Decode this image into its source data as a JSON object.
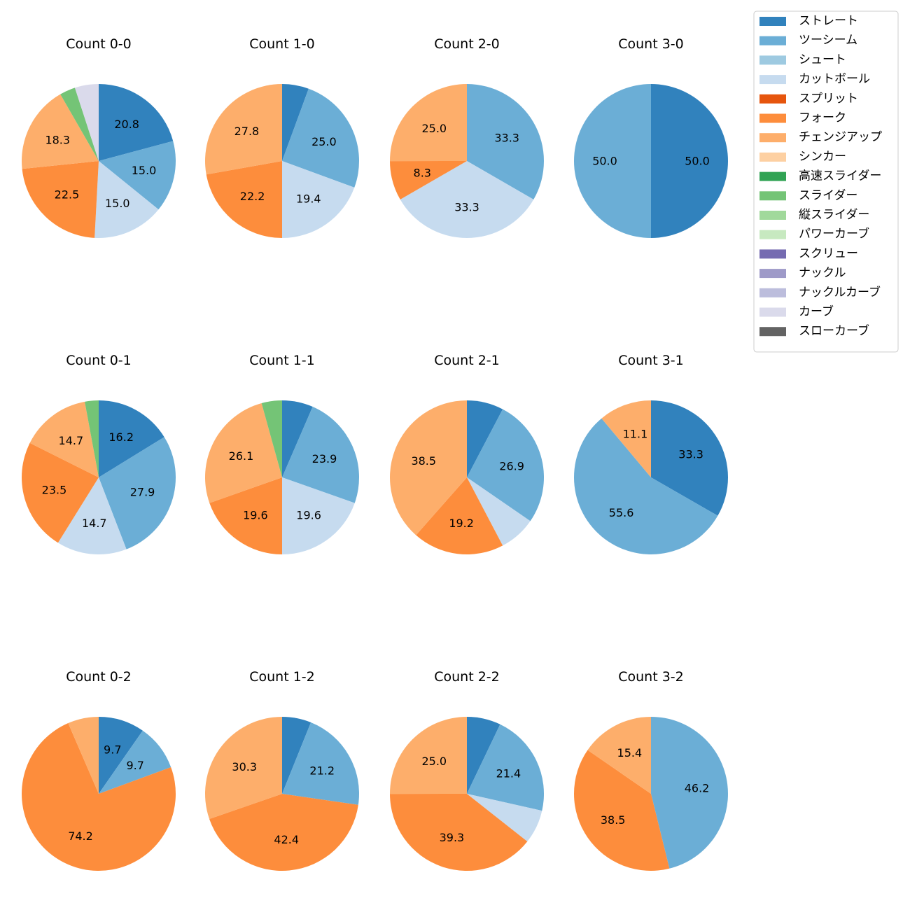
{
  "colors": {
    "ストレート": "#3182bd",
    "ツーシーム": "#6baed6",
    "シュート": "#9ecae1",
    "カットボール": "#c6dbef",
    "スプリット": "#e6550d",
    "フォーク": "#fd8d3c",
    "チェンジアップ": "#fdae6b",
    "シンカー": "#fdd0a2",
    "高速スライダー": "#31a354",
    "スライダー": "#74c476",
    "縦スライダー": "#a1d99b",
    "パワーカーブ": "#c7e9c0",
    "スクリュー": "#756bb1",
    "ナックル": "#9e9ac8",
    "ナックルカーブ": "#bcbddc",
    "カーブ": "#dadaeb",
    "スローカーブ": "#636363"
  },
  "chart_data": {
    "type": "pie",
    "legend_position": "top-right",
    "legend": [
      "ストレート",
      "ツーシーム",
      "シュート",
      "カットボール",
      "スプリット",
      "フォーク",
      "チェンジアップ",
      "シンカー",
      "高速スライダー",
      "スライダー",
      "縦スライダー",
      "パワーカーブ",
      "スクリュー",
      "ナックル",
      "ナックルカーブ",
      "カーブ",
      "スローカーブ"
    ],
    "pies": [
      {
        "title": "Count 0-0",
        "slices": [
          {
            "name": "ストレート",
            "value": 20.8,
            "label": "20.8"
          },
          {
            "name": "ツーシーム",
            "value": 15.0,
            "label": "15.0"
          },
          {
            "name": "カットボール",
            "value": 15.0,
            "label": "15.0"
          },
          {
            "name": "フォーク",
            "value": 22.5,
            "label": "22.5"
          },
          {
            "name": "チェンジアップ",
            "value": 18.3,
            "label": "18.3"
          },
          {
            "name": "スライダー",
            "value": 3.3,
            "label": ""
          },
          {
            "name": "カーブ",
            "value": 5.0,
            "label": ""
          }
        ]
      },
      {
        "title": "Count 1-0",
        "slices": [
          {
            "name": "ストレート",
            "value": 5.6,
            "label": ""
          },
          {
            "name": "ツーシーム",
            "value": 25.0,
            "label": "25.0"
          },
          {
            "name": "カットボール",
            "value": 19.4,
            "label": "19.4"
          },
          {
            "name": "フォーク",
            "value": 22.2,
            "label": "22.2"
          },
          {
            "name": "チェンジアップ",
            "value": 27.8,
            "label": "27.8"
          }
        ]
      },
      {
        "title": "Count 2-0",
        "slices": [
          {
            "name": "ツーシーム",
            "value": 33.3,
            "label": "33.3"
          },
          {
            "name": "カットボール",
            "value": 33.3,
            "label": "33.3"
          },
          {
            "name": "フォーク",
            "value": 8.3,
            "label": "8.3"
          },
          {
            "name": "チェンジアップ",
            "value": 25.0,
            "label": "25.0"
          }
        ]
      },
      {
        "title": "Count 3-0",
        "slices": [
          {
            "name": "ストレート",
            "value": 50.0,
            "label": "50.0"
          },
          {
            "name": "ツーシーム",
            "value": 50.0,
            "label": "50.0"
          }
        ]
      },
      {
        "title": "Count 0-1",
        "slices": [
          {
            "name": "ストレート",
            "value": 16.2,
            "label": "16.2"
          },
          {
            "name": "ツーシーム",
            "value": 27.9,
            "label": "27.9"
          },
          {
            "name": "カットボール",
            "value": 14.7,
            "label": "14.7"
          },
          {
            "name": "フォーク",
            "value": 23.5,
            "label": "23.5"
          },
          {
            "name": "チェンジアップ",
            "value": 14.7,
            "label": "14.7"
          },
          {
            "name": "スライダー",
            "value": 2.9,
            "label": ""
          }
        ]
      },
      {
        "title": "Count 1-1",
        "slices": [
          {
            "name": "ストレート",
            "value": 6.5,
            "label": ""
          },
          {
            "name": "ツーシーム",
            "value": 23.9,
            "label": "23.9"
          },
          {
            "name": "カットボール",
            "value": 19.6,
            "label": "19.6"
          },
          {
            "name": "フォーク",
            "value": 19.6,
            "label": "19.6"
          },
          {
            "name": "チェンジアップ",
            "value": 26.1,
            "label": "26.1"
          },
          {
            "name": "スライダー",
            "value": 4.3,
            "label": ""
          }
        ]
      },
      {
        "title": "Count 2-1",
        "slices": [
          {
            "name": "ストレート",
            "value": 7.7,
            "label": ""
          },
          {
            "name": "ツーシーム",
            "value": 26.9,
            "label": "26.9"
          },
          {
            "name": "カットボール",
            "value": 7.7,
            "label": ""
          },
          {
            "name": "フォーク",
            "value": 19.2,
            "label": "19.2"
          },
          {
            "name": "チェンジアップ",
            "value": 38.5,
            "label": "38.5"
          }
        ]
      },
      {
        "title": "Count 3-1",
        "slices": [
          {
            "name": "ストレート",
            "value": 33.3,
            "label": "33.3"
          },
          {
            "name": "ツーシーム",
            "value": 55.6,
            "label": "55.6"
          },
          {
            "name": "チェンジアップ",
            "value": 11.1,
            "label": "11.1"
          }
        ]
      },
      {
        "title": "Count 0-2",
        "slices": [
          {
            "name": "ストレート",
            "value": 9.7,
            "label": "9.7"
          },
          {
            "name": "ツーシーム",
            "value": 9.7,
            "label": "9.7"
          },
          {
            "name": "フォーク",
            "value": 74.2,
            "label": "74.2"
          },
          {
            "name": "チェンジアップ",
            "value": 6.5,
            "label": ""
          }
        ]
      },
      {
        "title": "Count 1-2",
        "slices": [
          {
            "name": "ストレート",
            "value": 6.1,
            "label": ""
          },
          {
            "name": "ツーシーム",
            "value": 21.2,
            "label": "21.2"
          },
          {
            "name": "フォーク",
            "value": 42.4,
            "label": "42.4"
          },
          {
            "name": "チェンジアップ",
            "value": 30.3,
            "label": "30.3"
          }
        ]
      },
      {
        "title": "Count 2-2",
        "slices": [
          {
            "name": "ストレート",
            "value": 7.1,
            "label": ""
          },
          {
            "name": "ツーシーム",
            "value": 21.4,
            "label": "21.4"
          },
          {
            "name": "カットボール",
            "value": 7.1,
            "label": ""
          },
          {
            "name": "フォーク",
            "value": 39.3,
            "label": "39.3"
          },
          {
            "name": "チェンジアップ",
            "value": 25.0,
            "label": "25.0"
          }
        ]
      },
      {
        "title": "Count 3-2",
        "slices": [
          {
            "name": "ツーシーム",
            "value": 46.2,
            "label": "46.2"
          },
          {
            "name": "フォーク",
            "value": 38.5,
            "label": "38.5"
          },
          {
            "name": "チェンジアップ",
            "value": 15.4,
            "label": "15.4"
          }
        ]
      }
    ]
  }
}
